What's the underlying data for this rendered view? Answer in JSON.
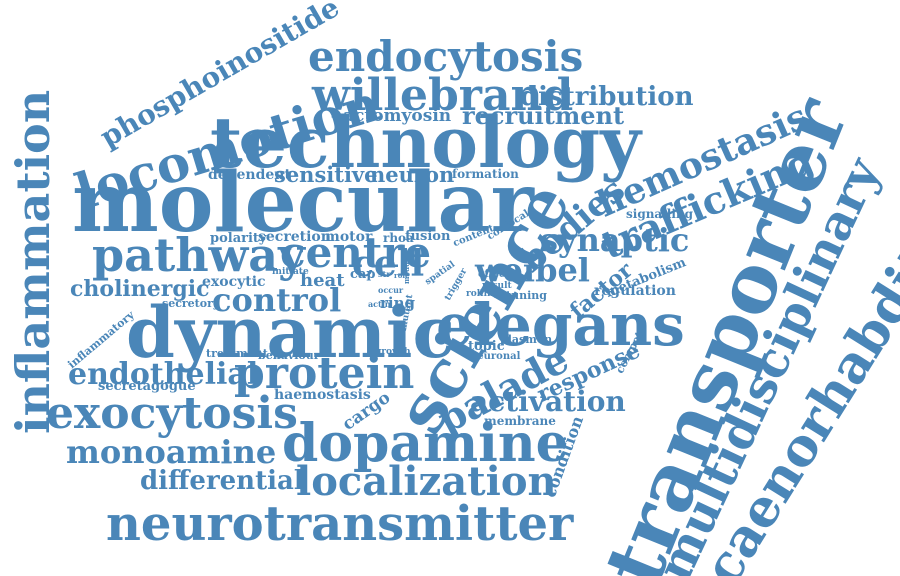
{
  "color": "#4a86b8",
  "words": [
    "phosphoinositide",
    "endocytosis",
    "locomotion",
    "willebrand",
    "distribution",
    "hemostasis",
    "technology",
    "actomyosin",
    "recruitment",
    "inflammation",
    "molecular",
    "dependent",
    "sensitive",
    "neuron",
    "formation",
    "trafficking",
    "bodies",
    "transporter",
    "multidisciplinary",
    "caenorhabditis",
    "pathway",
    "centre",
    "polarity",
    "secretion",
    "motor",
    "rhoa",
    "fusion",
    "content",
    "confocal",
    "signalling",
    "synaptic",
    "science",
    "weibel",
    "cell",
    "cholinergic",
    "exocytic",
    "initiate",
    "heat",
    "cap",
    "str",
    "role",
    "spatial",
    "trigger",
    "effect",
    "result",
    "factor",
    "metabolism",
    "control",
    "secretory",
    "actin",
    "ring",
    "mutant",
    "rolling",
    "tuning",
    "regulation",
    "dynamic",
    "elegans",
    "inflammatory",
    "treatment",
    "behaviour",
    "growth",
    "neuronal",
    "plasmon",
    "topic",
    "compete",
    "endothelial",
    "protein",
    "response",
    "palade",
    "secretagogue",
    "haemostasis",
    "cargo",
    "activation",
    "exocytosis",
    "membrane",
    "monoamine",
    "dopamine",
    "condition",
    "differential",
    "localization",
    "neurotransmitter",
    "occur",
    "modular"
  ]
}
